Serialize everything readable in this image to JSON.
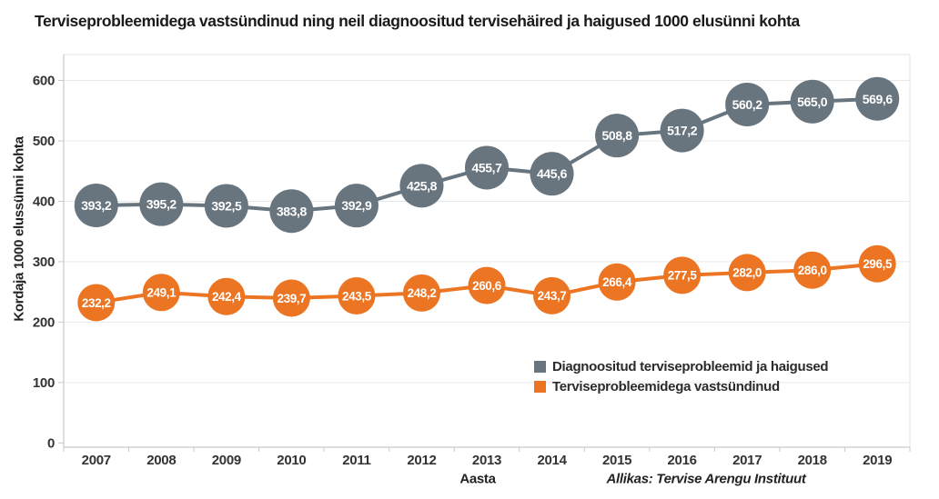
{
  "title": "Terviseprobleemidega vastsündinud ning neil diagnoositud tervisehäired ja haigused 1000 elusünni kohta",
  "source_note": "Allikas: Tervise Arengu Instituut",
  "chart_data": {
    "type": "line",
    "categories": [
      "2007",
      "2008",
      "2009",
      "2010",
      "2011",
      "2012",
      "2013",
      "2014",
      "2015",
      "2016",
      "2017",
      "2018",
      "2019"
    ],
    "series": [
      {
        "name": "Diagnoositud terviseprobleemid ja haigused",
        "color": "#68757E",
        "values": [
          393.2,
          395.2,
          392.5,
          383.8,
          392.9,
          425.8,
          455.7,
          445.6,
          508.8,
          517.2,
          560.2,
          565.0,
          569.6
        ],
        "labels": [
          "393,2",
          "395,2",
          "392,5",
          "383,8",
          "392,9",
          "425,8",
          "455,7",
          "445,6",
          "508,8",
          "517,2",
          "560,2",
          "565,0",
          "569,6"
        ]
      },
      {
        "name": "Terviseprobleemidega vastsündinud",
        "color": "#EC7523",
        "values": [
          232.2,
          249.1,
          242.4,
          239.7,
          243.5,
          248.2,
          260.6,
          243.7,
          266.4,
          277.5,
          282.0,
          286.0,
          296.5
        ],
        "labels": [
          "232,2",
          "249,1",
          "242,4",
          "239,7",
          "243,5",
          "248,2",
          "260,6",
          "243,7",
          "266,4",
          "277,5",
          "282,0",
          "286,0",
          "296,5"
        ]
      }
    ],
    "xlabel": "Aasta",
    "ylabel": "Kordaja 1000 elussünni kohta",
    "ylim": [
      0,
      600
    ],
    "yticks": [
      0,
      100,
      200,
      300,
      400,
      500,
      600
    ],
    "grid": true,
    "legend_position": "inside-bottom-right",
    "decimal_separator": ",",
    "data_label_color": "#ffffff",
    "axis_text_color": "#333333"
  }
}
